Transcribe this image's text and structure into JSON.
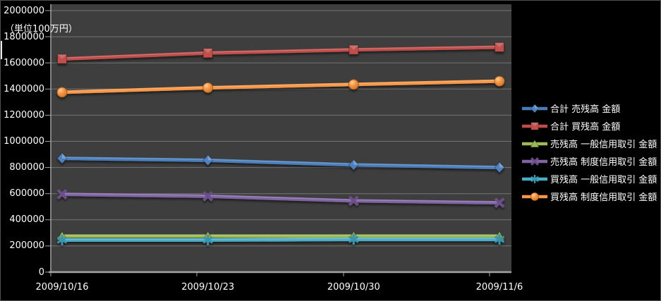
{
  "chart_data": {
    "type": "line",
    "title": "",
    "unit_label": "（単位100万円）",
    "xlabel": "",
    "ylabel": "",
    "categories": [
      "2009/10/16",
      "2009/10/23",
      "2009/10/30",
      "2009/11/6"
    ],
    "series": [
      {
        "name": "合計 売残高 金額",
        "marker": "diamond",
        "color": "#4a7ebb",
        "fill": "#4f81bd",
        "dark": "#2c4d6e",
        "values": [
          870000,
          855000,
          820000,
          800000
        ]
      },
      {
        "name": "合計 買残高 金額",
        "marker": "square",
        "color": "#bf4d4a",
        "fill": "#c0504d",
        "dark": "#7f3230",
        "values": [
          1630000,
          1675000,
          1700000,
          1720000
        ]
      },
      {
        "name": "売残高 一般信用取引 金額",
        "marker": "triangle",
        "color": "#9bbb59",
        "fill": "#9bbb59",
        "dark": "#5f7434",
        "values": [
          275000,
          275000,
          275000,
          275000
        ]
      },
      {
        "name": "売残高 制度信用取引 金額",
        "marker": "x",
        "color": "#8064a2",
        "fill": "#6b5088",
        "dark": "#4d3a66",
        "values": [
          595000,
          580000,
          545000,
          530000
        ]
      },
      {
        "name": "買残高 一般信用取引 金額",
        "marker": "asterisk",
        "color": "#4bacc6",
        "fill": "#3a93ad",
        "dark": "#2c6d80",
        "values": [
          245000,
          245000,
          250000,
          250000
        ]
      },
      {
        "name": "買残高 制度信用取引 金額",
        "marker": "circle",
        "color": "#f79646",
        "fill": "#f79646",
        "dark": "#9c5a1d",
        "values": [
          1375000,
          1410000,
          1435000,
          1460000
        ]
      }
    ],
    "ylim": [
      0,
      2000000
    ],
    "ytick_step": 200000,
    "ytick_labels": [
      "0",
      "200000",
      "400000",
      "600000",
      "800000",
      "1000000",
      "1200000",
      "1400000",
      "1600000",
      "1800000",
      "2000000"
    ],
    "grid": true,
    "legend_position": "right",
    "colors": {
      "background": "#000000",
      "plot_background": "#3e3e3e",
      "gridline": "#747474",
      "axis": "#a3a3a3",
      "text": "#ffffff"
    }
  }
}
